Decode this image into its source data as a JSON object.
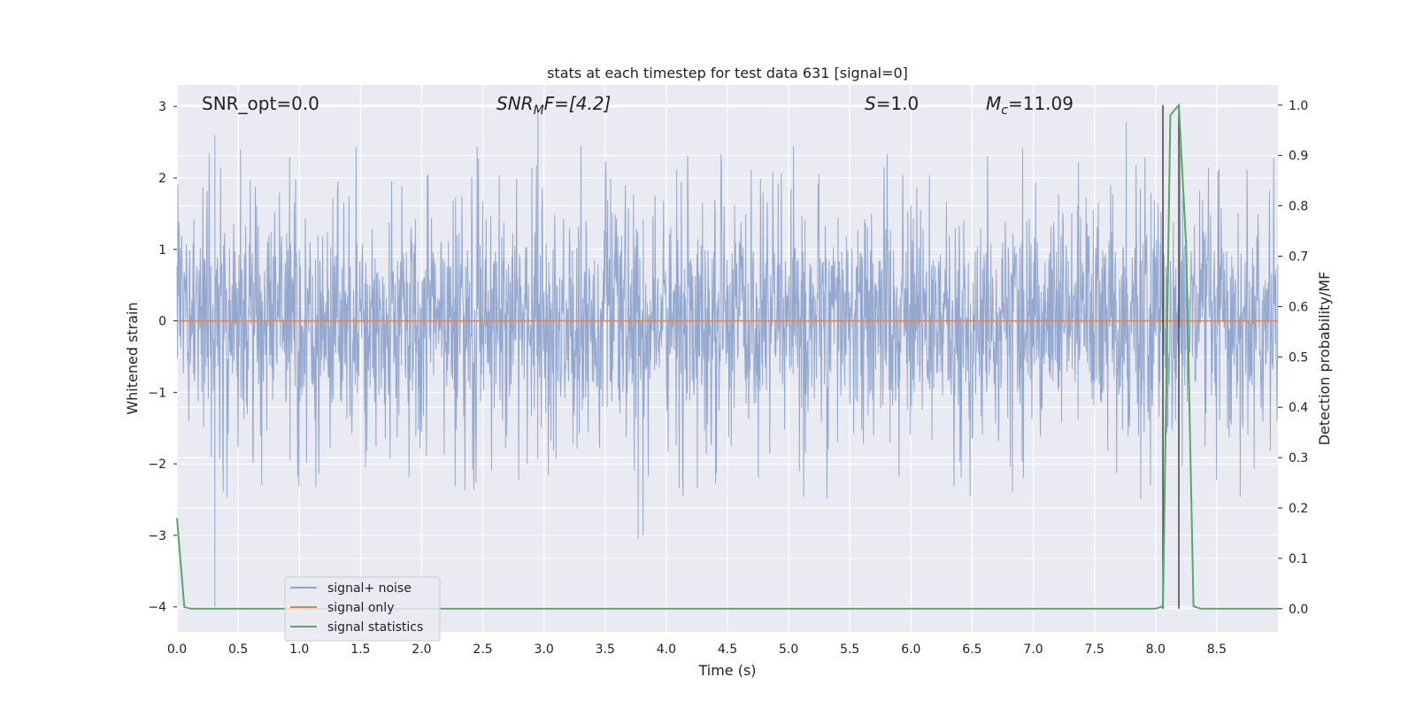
{
  "chart_data": {
    "type": "line",
    "title": "stats at each timestep for test data 631 [signal=0]",
    "xlabel": "Time (s)",
    "ylabel": "Whitened strain",
    "y2label": "Detection probability/MF",
    "xlim": [
      0.0,
      9.0
    ],
    "ylim": [
      -4.35,
      3.3
    ],
    "y2lim": [
      -0.046,
      1.04
    ],
    "xticks": [
      "0.0",
      "0.5",
      "1.0",
      "1.5",
      "2.0",
      "2.5",
      "3.0",
      "3.5",
      "4.0",
      "4.5",
      "5.0",
      "5.5",
      "6.0",
      "6.5",
      "7.0",
      "7.5",
      "8.0",
      "8.5"
    ],
    "xtick_values": [
      0.0,
      0.5,
      1.0,
      1.5,
      2.0,
      2.5,
      3.0,
      3.5,
      4.0,
      4.5,
      5.0,
      5.5,
      6.0,
      6.5,
      7.0,
      7.5,
      8.0,
      8.5
    ],
    "yticks": [
      "−4",
      "−3",
      "−2",
      "−1",
      "0",
      "1",
      "2",
      "3"
    ],
    "ytick_values": [
      -4,
      -3,
      -2,
      -1,
      0,
      1,
      2,
      3
    ],
    "y2ticks": [
      "0.0",
      "0.1",
      "0.2",
      "0.3",
      "0.4",
      "0.5",
      "0.6",
      "0.7",
      "0.8",
      "0.9",
      "1.0"
    ],
    "y2tick_values": [
      0.0,
      0.1,
      0.2,
      0.3,
      0.4,
      0.5,
      0.6,
      0.7,
      0.8,
      0.9,
      1.0
    ],
    "grid": true,
    "legend_position": "lower-left",
    "annotations": {
      "snr_opt": "SNR_opt=0.0",
      "snr_mf_main": "SNR",
      "snr_mf_sub": "M",
      "snr_mf_rest": "F=[4.2]",
      "s_main": "S",
      "s_rest": "=1.0",
      "mc_main": "M",
      "mc_sub": "c",
      "mc_rest": "=11.09"
    },
    "series": [
      {
        "name": "signal+ noise",
        "color": "#8fa4cc",
        "axis": "left",
        "kind": "noise",
        "value_range": [
          -4.0,
          2.95
        ],
        "approx_envelope": [
          0.9,
          -1.2
        ],
        "notable_points": [
          [
            0.31,
            -4.0
          ],
          [
            0.31,
            2.6
          ],
          [
            2.95,
            2.95
          ],
          [
            3.77,
            -3.05
          ],
          [
            3.81,
            -3.0
          ],
          [
            7.76,
            2.78
          ]
        ]
      },
      {
        "name": "signal only",
        "color": "#dd8452",
        "axis": "left",
        "x": [
          0.0,
          9.0
        ],
        "values": [
          0.0,
          0.0
        ]
      },
      {
        "name": "signal statistics",
        "color": "#55a868",
        "axis": "right",
        "x": [
          0.0,
          0.06,
          0.12,
          8.0,
          8.06,
          8.12,
          8.19,
          8.25,
          8.31,
          8.37,
          9.0
        ],
        "values": [
          0.18,
          0.003,
          0.0,
          0.0,
          0.005,
          0.98,
          1.0,
          0.72,
          0.005,
          0.0,
          0.0
        ]
      }
    ],
    "vertical_lines": [
      8.06,
      8.19
    ]
  }
}
